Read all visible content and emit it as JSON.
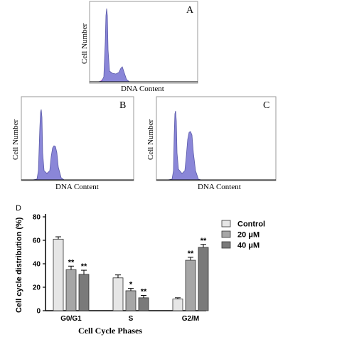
{
  "histograms": [
    {
      "letter": "A",
      "ylabel": "Cell Number",
      "xlabel": "DNA Content"
    },
    {
      "letter": "B",
      "ylabel": "Cell Number",
      "xlabel": "DNA Content"
    },
    {
      "letter": "C",
      "ylabel": "Cell Number",
      "xlabel": "DNA Content"
    }
  ],
  "colors": {
    "peak_fill": "#8a86d8",
    "magenta": "#e36ad6",
    "bar_control": "#e6e6e6",
    "bar_20": "#a6a6a6",
    "bar_40": "#7a7a7a"
  },
  "chart_data": {
    "type": "bar",
    "panel_label": "D",
    "title": "",
    "xlabel": "Cell Cycle Phases",
    "ylabel": "Cell cycle distribution (%)",
    "ylim": [
      0,
      80
    ],
    "yticks": [
      0,
      20,
      40,
      60,
      80
    ],
    "categories": [
      "G0/G1",
      "S",
      "G2/M"
    ],
    "series": [
      {
        "name": "Control",
        "values": [
          61,
          28,
          10
        ],
        "errors": [
          2,
          2.5,
          1
        ],
        "significance": [
          "",
          "",
          ""
        ]
      },
      {
        "name": "20 μM",
        "values": [
          35,
          17,
          43
        ],
        "errors": [
          3,
          2,
          2.5
        ],
        "significance": [
          "**",
          "*",
          "**"
        ]
      },
      {
        "name": "40 μM",
        "values": [
          31,
          11,
          54
        ],
        "errors": [
          3.5,
          2,
          2.5
        ],
        "significance": [
          "**",
          "**",
          "**"
        ]
      }
    ],
    "legend_position": "right"
  }
}
